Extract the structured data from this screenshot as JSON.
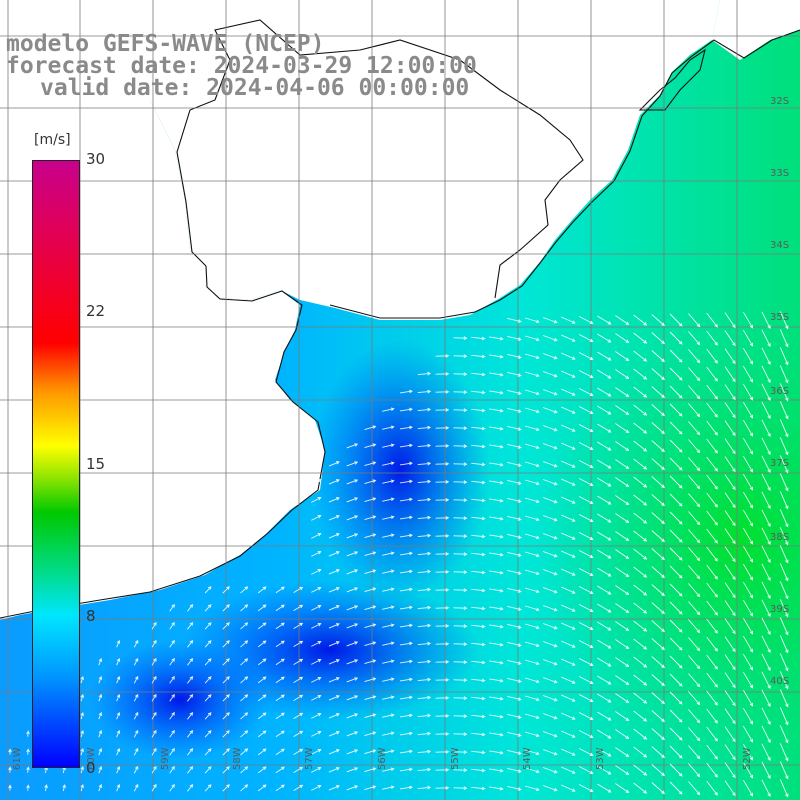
{
  "title": {
    "line1": "modelo GEFS-WAVE (NCEP)",
    "line2": "forecast date: 2024-03-29 12:00:00",
    "line3": "valid date: 2024-04-06 00:00:00"
  },
  "colorbar": {
    "unit": "[m/s]",
    "ticks": [
      "30",
      "22",
      "15",
      "8",
      "0"
    ]
  },
  "colors": {
    "land": "#ffffff",
    "grid": "#777777",
    "coast": "#111111",
    "arrows": "#ffffff",
    "low": "#0000ff",
    "mid": "#00e6ff",
    "high": "#00c800"
  },
  "map_labels": {
    "lat_right": [
      "32S",
      "33S",
      "34S",
      "35S",
      "36S",
      "37S",
      "38S",
      "39S",
      "40S"
    ],
    "lon_bottom": [
      "61W",
      "60W",
      "59W",
      "58W",
      "57W",
      "56W",
      "55W",
      "54W",
      "53W",
      "52W"
    ]
  }
}
